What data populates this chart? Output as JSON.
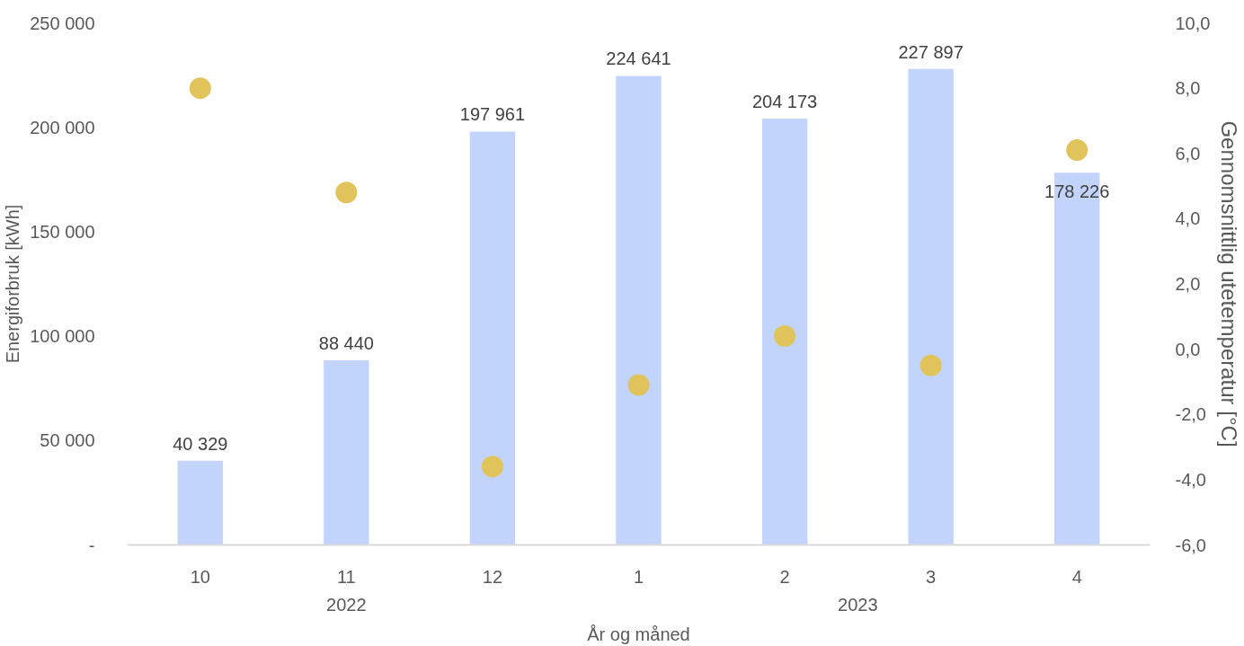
{
  "chart_data": {
    "type": "bar",
    "xlabel": "År og måned",
    "ylabel": "Energiforbruk [kWh]",
    "y2label": "Gennomsnittlig utetemperatur [°C]",
    "categories": [
      "10",
      "11",
      "12",
      "1",
      "2",
      "3",
      "4"
    ],
    "series": [
      {
        "color": "#c2d4fc",
        "values": [
          40329,
          88440,
          197961,
          224641,
          204173,
          227897,
          178226
        ],
        "value_labels": [
          "40 329",
          "88 440",
          "197 961",
          "224 641",
          "204 173",
          "227 897",
          "178 226"
        ]
      },
      {
        "type": "scatter",
        "axis": "y2",
        "color": "#e0c35a",
        "marker": "circle",
        "values": [
          8.0,
          4.8,
          -3.6,
          -1.1,
          0.4,
          -0.5,
          6.1
        ]
      }
    ],
    "ylim": [
      0,
      250000
    ],
    "yticks": [
      {
        "value": 0,
        "label": "-"
      },
      {
        "value": 50000,
        "label": "50 000"
      },
      {
        "value": 100000,
        "label": "100 000"
      },
      {
        "value": 150000,
        "label": "150 000"
      },
      {
        "value": 200000,
        "label": "200 000"
      },
      {
        "value": 250000,
        "label": "250 000"
      }
    ],
    "y2lim": [
      -6,
      10
    ],
    "y2ticks": [
      {
        "value": -6,
        "label": "-6,0"
      },
      {
        "value": -4,
        "label": "-4,0"
      },
      {
        "value": -2,
        "label": "-2,0"
      },
      {
        "value": 0,
        "label": "0,0"
      },
      {
        "value": 2,
        "label": "2,0"
      },
      {
        "value": 4,
        "label": "4,0"
      },
      {
        "value": 6,
        "label": "6,0"
      },
      {
        "value": 8,
        "label": "8,0"
      },
      {
        "value": 10,
        "label": "10,0"
      }
    ],
    "annotations": [
      "2022",
      "2023"
    ],
    "grid": false
  }
}
